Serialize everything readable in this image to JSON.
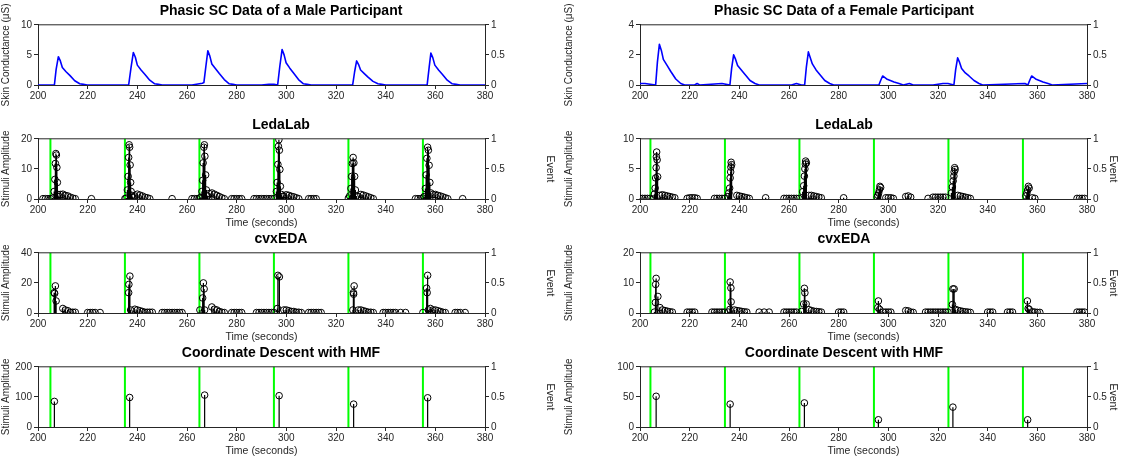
{
  "chart_data": [
    {
      "type": "line",
      "title": "Phasic SC Data of a Male Participant",
      "ylabel": "Skin Conductance (μS)",
      "color": "#0000ff",
      "x": [
        200,
        206.6,
        207.3,
        208.2,
        209,
        209.8,
        211.3,
        212.8,
        214.8,
        216.8,
        218.3,
        219.8,
        236.5,
        237.5,
        238.4,
        239.2,
        240,
        241.5,
        243,
        245,
        247,
        248.5,
        250,
        262,
        266.2,
        266.8,
        267.6,
        268.4,
        269.2,
        270,
        271.5,
        273,
        275,
        277,
        278.5,
        280,
        290,
        293,
        295,
        296.5,
        297.4,
        298.3,
        299.1,
        299.9,
        301.4,
        302.9,
        304.9,
        306.9,
        308.4,
        310,
        326.7,
        327.5,
        328.3,
        329.1,
        329.9,
        331.4,
        332.9,
        334.9,
        336.9,
        338.4,
        340,
        356.7,
        357.5,
        358.2,
        359,
        359.8,
        361.3,
        362.8,
        364.8,
        366.8,
        368.3,
        370,
        380
      ],
      "values": [
        0,
        0,
        2.6,
        4.7,
        4.0,
        2.9,
        2.2,
        1.6,
        0.7,
        0.2,
        0.1,
        0,
        0,
        3.0,
        5.4,
        4.6,
        3.3,
        2.5,
        1.8,
        0.8,
        0.2,
        0.1,
        0,
        0,
        0.3,
        0.4,
        3.1,
        5.7,
        4.8,
        3.5,
        2.7,
        1.9,
        0.9,
        0.2,
        0.1,
        0,
        0,
        0.1,
        0.1,
        0,
        3.2,
        5.9,
        5.0,
        3.7,
        2.8,
        2.0,
        0.9,
        0.2,
        0.1,
        0,
        0,
        2.2,
        4.0,
        3.4,
        2.5,
        1.9,
        1.3,
        0.6,
        0.2,
        0.1,
        0,
        0,
        2.9,
        5.3,
        4.5,
        3.3,
        2.5,
        1.8,
        0.8,
        0.2,
        0.1,
        0,
        0
      ],
      "xlim": [
        200,
        380
      ],
      "xticks": [
        200,
        220,
        240,
        260,
        280,
        300,
        320,
        340,
        360,
        380
      ],
      "ylim": [
        0,
        10
      ],
      "yticks": [
        0,
        5,
        10
      ],
      "y2lim": [
        0,
        1
      ],
      "y2ticks": [
        0,
        0.5,
        1
      ]
    },
    {
      "type": "line",
      "title": "Phasic SC Data of a Female Participant",
      "ylabel": "Skin Conductance (μS)",
      "color": "#0000ff",
      "x": [
        200,
        202,
        206.3,
        207,
        207.8,
        208.6,
        209.4,
        210.9,
        212.4,
        214.4,
        216.4,
        218,
        222,
        223,
        224,
        233,
        236.2,
        236.9,
        237.7,
        238.5,
        239.3,
        240.8,
        242.3,
        244.3,
        246.3,
        248,
        261,
        263,
        265,
        266.3,
        267,
        267.8,
        268.6,
        269.4,
        270.9,
        272.4,
        274.4,
        276.4,
        278,
        290,
        296.2,
        296.9,
        297.7,
        298.5,
        299.3,
        300.8,
        302.3,
        304.3,
        306,
        308.5,
        310,
        318,
        322,
        324,
        326.4,
        327.1,
        327.9,
        328.7,
        329.5,
        331,
        332.5,
        334.5,
        336.5,
        338,
        355,
        356.2,
        356.9,
        357.7,
        358.5,
        359.3,
        360.8,
        362.3,
        364.3,
        366,
        380
      ],
      "values": [
        0.1,
        0.1,
        0,
        1.5,
        2.7,
        2.3,
        1.7,
        1.3,
        0.9,
        0.4,
        0.1,
        0,
        0,
        0.1,
        0,
        0.1,
        0,
        1.1,
        2.0,
        1.7,
        1.3,
        1.0,
        0.7,
        0.3,
        0.1,
        0,
        0,
        0.1,
        0,
        0,
        1.2,
        2.2,
        1.8,
        1.4,
        1.0,
        0.7,
        0.3,
        0.1,
        0,
        0,
        0,
        0.3,
        0.6,
        0.5,
        0.4,
        0.3,
        0.2,
        0.1,
        0,
        0.1,
        0,
        0,
        0.1,
        0.1,
        0,
        1.0,
        1.8,
        1.5,
        1.1,
        0.8,
        0.6,
        0.3,
        0.1,
        0,
        0.1,
        0,
        0.3,
        0.6,
        0.5,
        0.4,
        0.3,
        0.2,
        0.1,
        0,
        0.1
      ],
      "xlim": [
        200,
        380
      ],
      "xticks": [
        200,
        220,
        240,
        260,
        280,
        300,
        320,
        340,
        360,
        380
      ],
      "ylim": [
        0,
        4
      ],
      "yticks": [
        0,
        2,
        4
      ],
      "y2lim": [
        0,
        1
      ],
      "y2ticks": [
        0,
        0.5,
        1
      ]
    },
    {
      "type": "lollipop",
      "title": "LedaLab",
      "xlabel": "Time (seconds)",
      "ylabel": "Stimuli Amplitude",
      "y2label": "Event",
      "color": "#000000",
      "marker": "circle",
      "x": [
        202,
        203,
        204,
        205,
        205.8,
        206.5,
        206.8,
        207.0,
        207.2,
        207.4,
        207.6,
        207.8,
        208.0,
        208.5,
        209,
        210,
        211,
        212,
        213,
        214,
        215,
        221.5,
        235,
        235.5,
        236,
        236.3,
        236.5,
        236.7,
        236.9,
        237.1,
        237.3,
        237.5,
        237.8,
        238.2,
        239,
        240,
        241,
        242,
        243,
        244,
        245,
        254,
        262,
        263,
        264,
        265,
        265.5,
        266,
        266.3,
        266.5,
        266.8,
        267.0,
        267.2,
        267.5,
        267.8,
        268.3,
        269,
        270,
        271,
        272,
        273,
        274,
        275,
        278,
        279,
        280,
        281,
        282,
        287,
        288,
        289,
        290,
        291,
        292,
        293,
        294,
        295,
        296,
        296.3,
        296.6,
        296.8,
        297,
        297.2,
        297.4,
        297.6,
        298,
        298.5,
        299,
        300,
        301,
        302,
        303,
        304,
        305,
        309,
        310,
        311,
        312,
        325,
        325.5,
        326,
        326.3,
        326.6,
        326.9,
        327.2,
        327.5,
        327.8,
        328.2,
        329,
        330,
        331,
        332,
        333,
        334,
        335,
        352,
        353,
        354,
        355,
        355.5,
        356,
        356.3,
        356.6,
        356.9,
        357.2,
        357.5,
        357.8,
        358.2,
        359,
        360,
        361,
        362,
        363,
        364,
        365,
        371
      ],
      "values": [
        0.1,
        0.1,
        0.1,
        0.1,
        0.3,
        2.5,
        6.5,
        11.8,
        15.1,
        14.6,
        10.5,
        5.5,
        1.5,
        0.8,
        1.5,
        1.6,
        1.2,
        1.0,
        0.6,
        0.3,
        0.1,
        0.1,
        0.1,
        0.3,
        3,
        7.5,
        13.8,
        18,
        17.2,
        11.3,
        5.5,
        2.5,
        1.2,
        0.6,
        1.0,
        1.6,
        1.3,
        1.0,
        0.6,
        0.4,
        0.1,
        0.1,
        0.1,
        0.1,
        0.1,
        0.3,
        0.5,
        2.5,
        6.2,
        12,
        17.2,
        18,
        14.2,
        8,
        3,
        1.0,
        1.8,
        2.0,
        1.6,
        1.2,
        0.8,
        0.4,
        0.1,
        0.1,
        0.1,
        0.1,
        0.1,
        0.1,
        0.1,
        0.1,
        0.1,
        0.1,
        0.1,
        0.1,
        0.1,
        0.1,
        0.1,
        2.5,
        5.5,
        11.5,
        17.5,
        19.7,
        16.2,
        9.8,
        4.2,
        1.5,
        0.8,
        1.0,
        1.4,
        1.2,
        0.9,
        0.7,
        0.4,
        0.1,
        0.1,
        0.1,
        0.1,
        0.1,
        0.3,
        1.0,
        3.5,
        7.5,
        11.8,
        13.8,
        12,
        7.5,
        3,
        1.0,
        0.8,
        1.5,
        1.3,
        1.0,
        0.7,
        0.4,
        0.1,
        0.1,
        0.1,
        0.1,
        0.3,
        0.8,
        3.5,
        8,
        13.5,
        17.2,
        16.2,
        11.2,
        5.5,
        2.0,
        1.5,
        1.5,
        1.2,
        1.0,
        0.7,
        0.4,
        0.1,
        0.1
      ],
      "xlim": [
        200,
        380
      ],
      "xticks": [
        200,
        220,
        240,
        260,
        280,
        300,
        320,
        340,
        360,
        380
      ],
      "ylim": [
        0,
        20
      ],
      "yticks": [
        0,
        10,
        20
      ],
      "y2lim": [
        0,
        1
      ],
      "y2ticks": [
        0,
        0.5,
        1
      ],
      "ref_lines": [
        {
          "axis": "x",
          "value": 205,
          "color": "#00ff00"
        },
        {
          "axis": "x",
          "value": 235,
          "color": "#00ff00"
        },
        {
          "axis": "x",
          "value": 265,
          "color": "#00ff00"
        },
        {
          "axis": "x",
          "value": 295,
          "color": "#00ff00"
        },
        {
          "axis": "x",
          "value": 325,
          "color": "#00ff00"
        },
        {
          "axis": "x",
          "value": 355,
          "color": "#00ff00"
        }
      ]
    },
    {
      "type": "lollipop",
      "title": "LedaLab",
      "xlabel": "Time (seconds)",
      "ylabel": "Stimuli Amplitude",
      "y2label": "Event",
      "color": "#000000",
      "marker": "circle",
      "x": [
        200,
        201,
        202,
        203,
        204,
        205.2,
        205.8,
        206.1,
        206.3,
        206.5,
        206.6,
        206.7,
        206.9,
        207.1,
        208,
        209,
        210,
        211,
        212,
        213,
        214,
        219,
        220,
        221,
        222,
        223,
        230,
        231,
        232,
        233,
        234,
        235.4,
        235.8,
        236.1,
        236.3,
        236.5,
        236.6,
        236.7,
        236.9,
        239,
        240,
        241,
        242,
        243,
        244,
        250.6,
        258,
        259,
        260,
        261,
        262,
        263,
        264,
        265.5,
        265.9,
        266.2,
        266.4,
        266.6,
        266.7,
        267,
        268,
        269,
        270,
        271,
        272,
        273,
        282,
        295.5,
        295.8,
        296.1,
        296.4,
        296.6,
        296.9,
        299,
        300,
        301,
        302,
        307,
        308,
        309,
        316,
        318,
        319,
        320,
        321,
        322,
        323,
        325.4,
        325.8,
        326.1,
        326.4,
        326.5,
        326.7,
        326.9,
        328,
        329,
        330,
        331,
        332,
        333,
        355.4,
        355.8,
        356.1,
        356.4,
        356.7,
        358,
        359,
        376,
        377,
        378,
        379
      ],
      "values": [
        0.1,
        0.1,
        0.1,
        0.1,
        0.1,
        0,
        0.8,
        1.8,
        3.5,
        5.2,
        7.0,
        7.8,
        6.5,
        3.7,
        0.6,
        0.7,
        0.6,
        0.5,
        0.4,
        0.3,
        0.2,
        0.1,
        0.2,
        0.2,
        0.2,
        0.1,
        0.1,
        0.1,
        0.1,
        0.1,
        0.1,
        0.4,
        1.0,
        1.8,
        3.5,
        4.5,
        5.3,
        6.1,
        5.7,
        0.6,
        0.5,
        0.4,
        0.3,
        0.2,
        0.1,
        0.2,
        0.1,
        0.1,
        0.1,
        0.1,
        0.1,
        0.1,
        0.1,
        1.2,
        2.2,
        3.8,
        5.0,
        5.8,
        6.3,
        6.0,
        0.6,
        0.6,
        0.5,
        0.4,
        0.3,
        0.2,
        0.2,
        0.3,
        0.6,
        1.0,
        1.5,
        2.1,
        1.9,
        0.2,
        0.2,
        0.2,
        0.1,
        0.4,
        0.5,
        0.3,
        0.1,
        0.3,
        0.3,
        0.3,
        0.3,
        0.3,
        0.3,
        1.0,
        2.0,
        3.0,
        3.8,
        4.5,
        5.2,
        4.9,
        0.6,
        0.5,
        0.4,
        0.3,
        0.2,
        0.1,
        0.5,
        1.0,
        1.5,
        2.1,
        1.8,
        0.2,
        0.1,
        0.1,
        0.1,
        0.1,
        0.1
      ],
      "xlim": [
        200,
        380
      ],
      "xticks": [
        200,
        220,
        240,
        260,
        280,
        300,
        320,
        340,
        360,
        380
      ],
      "ylim": [
        0,
        10
      ],
      "yticks": [
        0,
        5,
        10
      ],
      "y2lim": [
        0,
        1
      ],
      "y2ticks": [
        0,
        0.5,
        1
      ],
      "ref_lines": [
        {
          "axis": "x",
          "value": 204.2,
          "color": "#00ff00"
        },
        {
          "axis": "x",
          "value": 234.2,
          "color": "#00ff00"
        },
        {
          "axis": "x",
          "value": 264.2,
          "color": "#00ff00"
        },
        {
          "axis": "x",
          "value": 294.2,
          "color": "#00ff00"
        },
        {
          "axis": "x",
          "value": 324.2,
          "color": "#00ff00"
        },
        {
          "axis": "x",
          "value": 354.2,
          "color": "#00ff00"
        }
      ]
    },
    {
      "type": "lollipop",
      "title": "cvxEDA",
      "xlabel": "Time (seconds)",
      "ylabel": "Stimuli Amplitude",
      "y2label": "Event",
      "color": "#000000",
      "marker": "circle",
      "x": [
        206.5,
        206.7,
        207.0,
        207.3,
        210,
        211,
        212,
        213,
        214,
        215,
        220,
        221,
        222,
        223,
        225,
        236.5,
        236.6,
        237.0,
        237.3,
        239,
        240,
        241,
        242,
        243,
        244,
        245,
        246,
        250,
        251,
        252,
        253,
        254,
        255,
        256,
        257,
        258,
        265.2,
        266.3,
        266.6,
        266.9,
        267.1,
        270,
        271,
        272,
        273,
        274,
        275,
        278,
        279,
        280,
        281,
        282,
        288,
        289,
        290,
        291,
        292,
        293,
        294,
        295,
        296.4,
        296.6,
        297.2,
        299,
        300,
        301,
        302,
        303,
        304,
        305,
        306,
        309,
        310,
        311,
        312,
        313,
        314,
        326.8,
        327.0,
        327.1,
        327.3,
        329,
        330,
        331,
        332,
        333,
        334,
        335,
        339,
        340,
        341,
        342,
        343,
        344,
        346,
        348,
        355,
        356.5,
        356.7,
        356.9,
        357.2,
        358,
        359,
        360,
        361,
        362,
        363,
        364,
        368,
        369,
        370,
        372
      ],
      "values": [
        13.5,
        13,
        18,
        8,
        3,
        2,
        1.5,
        0.5,
        0.5,
        0.5,
        0.3,
        0.3,
        0.3,
        0.3,
        0.3,
        13.5,
        19,
        24.5,
        2,
        2.5,
        2,
        1.5,
        1,
        0.5,
        0.5,
        0.5,
        0.5,
        0.3,
        0.3,
        0.3,
        0.3,
        0.3,
        0.3,
        0.3,
        0.3,
        0.3,
        2,
        10,
        20,
        16,
        2,
        4,
        2.5,
        2,
        1,
        0.5,
        0.3,
        0.3,
        0.3,
        0.3,
        0.3,
        0.3,
        0.3,
        0.3,
        0.3,
        0.3,
        0.3,
        0.3,
        0.3,
        0.3,
        3,
        25,
        24,
        2,
        2,
        1.5,
        1,
        1,
        0.5,
        0.5,
        0.3,
        0.3,
        0.3,
        0.3,
        0.3,
        0.3,
        0.3,
        2,
        13.5,
        12.5,
        18,
        2,
        2,
        1.5,
        1,
        0.5,
        0.5,
        0.3,
        0.3,
        0.3,
        0.3,
        0.3,
        0.3,
        0.3,
        0.3,
        0.3,
        0.3,
        16.5,
        13.5,
        25,
        2,
        3,
        2,
        2,
        1.5,
        1,
        0.5,
        0.3,
        0.3,
        0.3,
        0.3,
        0.3
      ],
      "xlim": [
        200,
        380
      ],
      "xticks": [
        200,
        220,
        240,
        260,
        280,
        300,
        320,
        340,
        360,
        380
      ],
      "ylim": [
        0,
        40
      ],
      "yticks": [
        0,
        20,
        40
      ],
      "y2lim": [
        0,
        1
      ],
      "y2ticks": [
        0,
        0.5,
        1
      ],
      "ref_lines": [
        {
          "axis": "x",
          "value": 205,
          "color": "#00ff00"
        },
        {
          "axis": "x",
          "value": 235,
          "color": "#00ff00"
        },
        {
          "axis": "x",
          "value": 265,
          "color": "#00ff00"
        },
        {
          "axis": "x",
          "value": 295,
          "color": "#00ff00"
        },
        {
          "axis": "x",
          "value": 325,
          "color": "#00ff00"
        },
        {
          "axis": "x",
          "value": 355,
          "color": "#00ff00"
        }
      ]
    },
    {
      "type": "lollipop",
      "title": "cvxEDA",
      "xlabel": "Time (seconds)",
      "ylabel": "Stimuli Amplitude",
      "y2label": "Event",
      "color": "#000000",
      "marker": "circle",
      "x": [
        205.8,
        206.2,
        206.3,
        206.5,
        207.2,
        208,
        209,
        210,
        211,
        212,
        213,
        219,
        220,
        221,
        222,
        229,
        230,
        231,
        232,
        233,
        234,
        235.5,
        236.2,
        236.3,
        236.6,
        236.7,
        238,
        239,
        240,
        241,
        242,
        243,
        248,
        250,
        252,
        258,
        259,
        260,
        261,
        262,
        263,
        265,
        265.9,
        266.2,
        266.4,
        266.9,
        268,
        269,
        270,
        271,
        272,
        273,
        280,
        281,
        282,
        295.8,
        296.0,
        296.5,
        298,
        299,
        300,
        301,
        307,
        308,
        309,
        310,
        315,
        316,
        317,
        318,
        319,
        320,
        321,
        322,
        323,
        324,
        325.8,
        326.0,
        326.5,
        327,
        328,
        329,
        330,
        331,
        332,
        333,
        340,
        341,
        342,
        348,
        349,
        350,
        356.0,
        356.3,
        356.7,
        358,
        359,
        360,
        361,
        376,
        377,
        378,
        379
      ],
      "values": [
        0.3,
        3.5,
        9.5,
        11.5,
        5.5,
        1.8,
        1.0,
        0.8,
        0.6,
        0.4,
        0.3,
        0.3,
        0.3,
        0.3,
        0.3,
        0.3,
        0.3,
        0.3,
        0.3,
        0.3,
        0.3,
        0.3,
        1.2,
        10.3,
        8.3,
        3.7,
        1,
        0.8,
        0.7,
        0.5,
        0.4,
        0.3,
        0.3,
        0.3,
        0.3,
        0.3,
        0.3,
        0.3,
        0.3,
        0.3,
        0.3,
        0.5,
        3,
        8.2,
        6.7,
        3,
        1.1,
        0.8,
        0.6,
        0.5,
        0.4,
        0.3,
        0.3,
        0.3,
        0.3,
        1.8,
        4,
        1.2,
        0.3,
        0.3,
        0.3,
        0.3,
        0.8,
        0.7,
        0.3,
        0.2,
        0.3,
        0.3,
        0.3,
        0.3,
        0.3,
        0.3,
        0.3,
        0.3,
        0.3,
        0.3,
        2.8,
        8,
        8,
        1.2,
        0.9,
        0.7,
        0.5,
        0.4,
        0.3,
        0.2,
        0.3,
        0.3,
        0.3,
        0.3,
        0.3,
        0.3,
        4,
        1.5,
        1.2,
        0.4,
        0.3,
        0.2,
        0.2,
        0.3,
        0.3,
        0.3,
        0.3
      ],
      "xlim": [
        200,
        380
      ],
      "xticks": [
        200,
        220,
        240,
        260,
        280,
        300,
        320,
        340,
        360,
        380
      ],
      "ylim": [
        0,
        20
      ],
      "yticks": [
        0,
        10,
        20
      ],
      "y2lim": [
        0,
        1
      ],
      "y2ticks": [
        0,
        0.5,
        1
      ],
      "ref_lines": [
        {
          "axis": "x",
          "value": 204.2,
          "color": "#00ff00"
        },
        {
          "axis": "x",
          "value": 234.2,
          "color": "#00ff00"
        },
        {
          "axis": "x",
          "value": 264.2,
          "color": "#00ff00"
        },
        {
          "axis": "x",
          "value": 294.2,
          "color": "#00ff00"
        },
        {
          "axis": "x",
          "value": 324.2,
          "color": "#00ff00"
        },
        {
          "axis": "x",
          "value": 354.2,
          "color": "#00ff00"
        }
      ]
    },
    {
      "type": "lollipop",
      "title": "Coordinate Descent with HMF",
      "xlabel": "Time (seconds)",
      "ylabel": "Stimuli Amplitude",
      "y2label": "Event",
      "color": "#000000",
      "marker": "circle",
      "x": [
        206.6,
        236.9,
        267.1,
        297.1,
        327.1,
        356.9
      ],
      "values": [
        85,
        98,
        106,
        104,
        76,
        97
      ],
      "xlim": [
        200,
        380
      ],
      "xticks": [
        200,
        220,
        240,
        260,
        280,
        300,
        320,
        340,
        360,
        380
      ],
      "ylim": [
        0,
        200
      ],
      "yticks": [
        0,
        100,
        200
      ],
      "y2lim": [
        0,
        1
      ],
      "y2ticks": [
        0,
        0.5,
        1
      ],
      "ref_lines": [
        {
          "axis": "x",
          "value": 205,
          "color": "#00ff00"
        },
        {
          "axis": "x",
          "value": 235,
          "color": "#00ff00"
        },
        {
          "axis": "x",
          "value": 265,
          "color": "#00ff00"
        },
        {
          "axis": "x",
          "value": 295,
          "color": "#00ff00"
        },
        {
          "axis": "x",
          "value": 325,
          "color": "#00ff00"
        },
        {
          "axis": "x",
          "value": 355,
          "color": "#00ff00"
        }
      ]
    },
    {
      "type": "lollipop",
      "title": "Coordinate Descent with HMF",
      "xlabel": "Time (seconds)",
      "ylabel": "Stimuli Amplitude",
      "y2label": "Event",
      "color": "#000000",
      "marker": "circle",
      "x": [
        206.5,
        236.3,
        266.2,
        296.0,
        326.0,
        356.1
      ],
      "values": [
        51,
        38,
        40,
        12,
        33,
        12
      ],
      "xlim": [
        200,
        380
      ],
      "xticks": [
        200,
        220,
        240,
        260,
        280,
        300,
        320,
        340,
        360,
        380
      ],
      "ylim": [
        0,
        100
      ],
      "yticks": [
        0,
        50,
        100
      ],
      "y2lim": [
        0,
        1
      ],
      "y2ticks": [
        0,
        0.5,
        1
      ],
      "ref_lines": [
        {
          "axis": "x",
          "value": 204.2,
          "color": "#00ff00"
        },
        {
          "axis": "x",
          "value": 234.2,
          "color": "#00ff00"
        },
        {
          "axis": "x",
          "value": 264.2,
          "color": "#00ff00"
        },
        {
          "axis": "x",
          "value": 294.2,
          "color": "#00ff00"
        },
        {
          "axis": "x",
          "value": 324.2,
          "color": "#00ff00"
        },
        {
          "axis": "x",
          "value": 354.2,
          "color": "#00ff00"
        }
      ]
    }
  ]
}
